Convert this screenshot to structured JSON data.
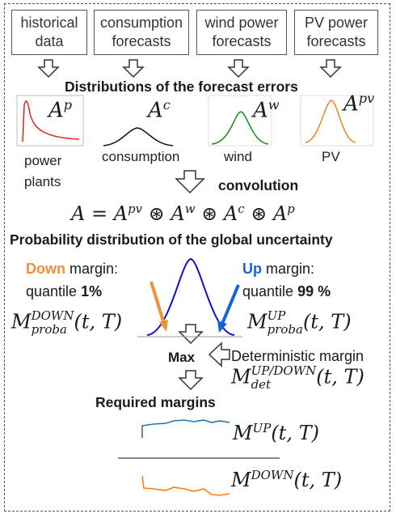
{
  "inputs": [
    {
      "line1": "historical",
      "line2": "data"
    },
    {
      "line1": "consumption",
      "line2": "forecasts"
    },
    {
      "line1": "wind power",
      "line2": "forecasts"
    },
    {
      "line1": "PV power",
      "line2": "forecasts"
    }
  ],
  "section_title": "Distributions of the forecast errors",
  "distributions": [
    {
      "symbol": "A",
      "superscript": "p",
      "label_line1": "power",
      "label_line2": "plants",
      "color": "#e02020"
    },
    {
      "symbol": "A",
      "superscript": "c",
      "label_line1": "consumption",
      "label_line2": "",
      "color": "#111111"
    },
    {
      "symbol": "A",
      "superscript": "w",
      "label_line1": "wind",
      "label_line2": "",
      "color": "#1a8a1a"
    },
    {
      "symbol": "A",
      "superscript": "pv",
      "label_line1": "PV",
      "label_line2": "",
      "color": "#f08020"
    }
  ],
  "convolution_label": "convolution",
  "formula": {
    "lhs": "A",
    "eq": "=",
    "op": "⊛",
    "terms": [
      {
        "symbol": "A",
        "sup": "pv"
      },
      {
        "symbol": "A",
        "sup": "w"
      },
      {
        "symbol": "A",
        "sup": "c"
      },
      {
        "symbol": "A",
        "sup": "p"
      }
    ]
  },
  "global_title": "Probability distribution of the global uncertainty",
  "down": {
    "word": "Down",
    "rest": " margin:",
    "q_prefix": "quantile ",
    "q_value": "1%",
    "color": "#f0903a"
  },
  "up": {
    "word": "Up",
    "rest": " margin:",
    "q_prefix": "quantile ",
    "q_value": "99 %",
    "color": "#1565d8"
  },
  "m_down_proba": {
    "M": "M",
    "sup": "DOWN",
    "sub": "proba",
    "args": "(t, T)"
  },
  "m_up_proba": {
    "M": "M",
    "sup": "UP",
    "sub": "proba",
    "args": "(t, T)"
  },
  "max_label": "Max",
  "deterministic_label": "Deterministic margin",
  "m_det": {
    "M": "M",
    "sup": "UP/DOWN",
    "sub": "det",
    "args": "(t, T)"
  },
  "required_title": "Required margins",
  "m_up": {
    "M": "M",
    "sup": "UP",
    "args": "(t, T)"
  },
  "m_down": {
    "M": "M",
    "sup": "DOWN",
    "args": "(t, T)"
  },
  "colors": {
    "up_series": "#1f77b4",
    "down_series": "#ff7f0e",
    "gaussian": "#1010d0"
  }
}
